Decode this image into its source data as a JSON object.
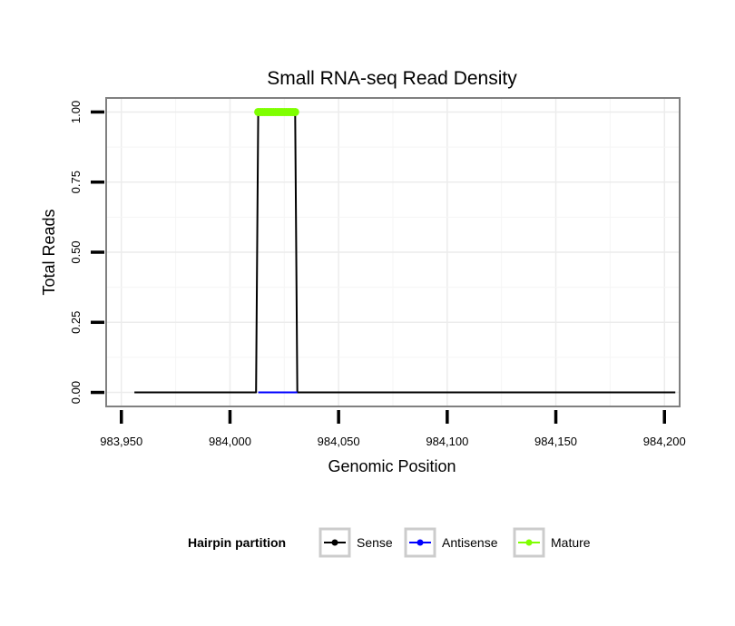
{
  "chart_data": {
    "type": "line",
    "title": "Small RNA-seq Read Density",
    "xlabel": "Genomic Position",
    "ylabel": "Total Reads",
    "xlim": [
      983943,
      984207
    ],
    "ylim": [
      -0.05,
      1.05
    ],
    "x_ticks": [
      983950,
      984000,
      984050,
      984100,
      984150,
      984200
    ],
    "x_tick_labels": [
      "983,950",
      "984,000",
      "984,050",
      "984,100",
      "984,150",
      "984,200"
    ],
    "y_ticks": [
      0,
      0.25,
      0.5,
      0.75,
      1.0
    ],
    "y_tick_labels": [
      "0.00",
      "0.25",
      "0.50",
      "0.75",
      "1.00"
    ],
    "grid": true,
    "legend_title": "Hairpin partition",
    "legend_position": "bottom",
    "series": [
      {
        "name": "Sense",
        "color": "#000000",
        "kind": "line",
        "points": [
          [
            983956,
            0
          ],
          [
            984012,
            0
          ],
          [
            984013,
            1
          ],
          [
            984030,
            1
          ],
          [
            984031,
            0
          ],
          [
            984205,
            0
          ]
        ]
      },
      {
        "name": "Antisense",
        "color": "#0000ff",
        "kind": "line",
        "points": [
          [
            984013,
            0
          ],
          [
            984031,
            0
          ]
        ]
      },
      {
        "name": "Mature",
        "color": "#7fff00",
        "kind": "dots",
        "points": [
          [
            984013,
            1
          ],
          [
            984014,
            1
          ],
          [
            984015,
            1
          ],
          [
            984016,
            1
          ],
          [
            984017,
            1
          ],
          [
            984018,
            1
          ],
          [
            984019,
            1
          ],
          [
            984020,
            1
          ],
          [
            984021,
            1
          ],
          [
            984022,
            1
          ],
          [
            984023,
            1
          ],
          [
            984024,
            1
          ],
          [
            984025,
            1
          ],
          [
            984026,
            1
          ],
          [
            984027,
            1
          ],
          [
            984028,
            1
          ],
          [
            984029,
            1
          ],
          [
            984030,
            1
          ]
        ]
      }
    ]
  }
}
